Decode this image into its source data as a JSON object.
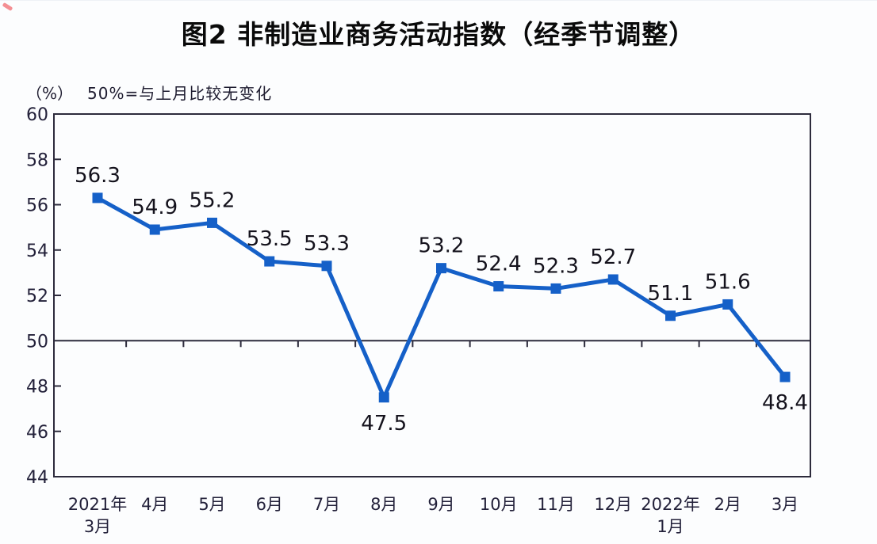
{
  "page": {
    "background_color": "#fcfdfe"
  },
  "chart_data": {
    "type": "line",
    "title": "图2 非制造业商务活动指数（经季节调整）",
    "unit_label": "（%）",
    "note": "50%=与上月比较无变化",
    "categories": [
      "2021年\n3月",
      "4月",
      "5月",
      "6月",
      "7月",
      "8月",
      "9月",
      "10月",
      "11月",
      "12月",
      "2022年\n1月",
      "2月",
      "3月"
    ],
    "values": [
      56.3,
      54.9,
      55.2,
      53.5,
      53.3,
      47.5,
      53.2,
      52.4,
      52.3,
      52.7,
      51.1,
      51.6,
      48.4
    ],
    "data_labels": [
      "56.3",
      "54.9",
      "55.2",
      "53.5",
      "53.3",
      "47.5",
      "53.2",
      "52.4",
      "52.3",
      "52.7",
      "51.1",
      "51.6",
      "48.4"
    ],
    "labels_below_indices": [
      5,
      12
    ],
    "ylim": [
      44,
      60
    ],
    "yticks": [
      44,
      46,
      48,
      50,
      52,
      54,
      56,
      58,
      60
    ],
    "reference_line": 50,
    "grid": false,
    "legend": false,
    "line_color": "#1560c8",
    "marker": "square",
    "axis_color": "#2d2b3c",
    "tick_label_color": "#23213a",
    "data_label_color": "#14121c"
  }
}
